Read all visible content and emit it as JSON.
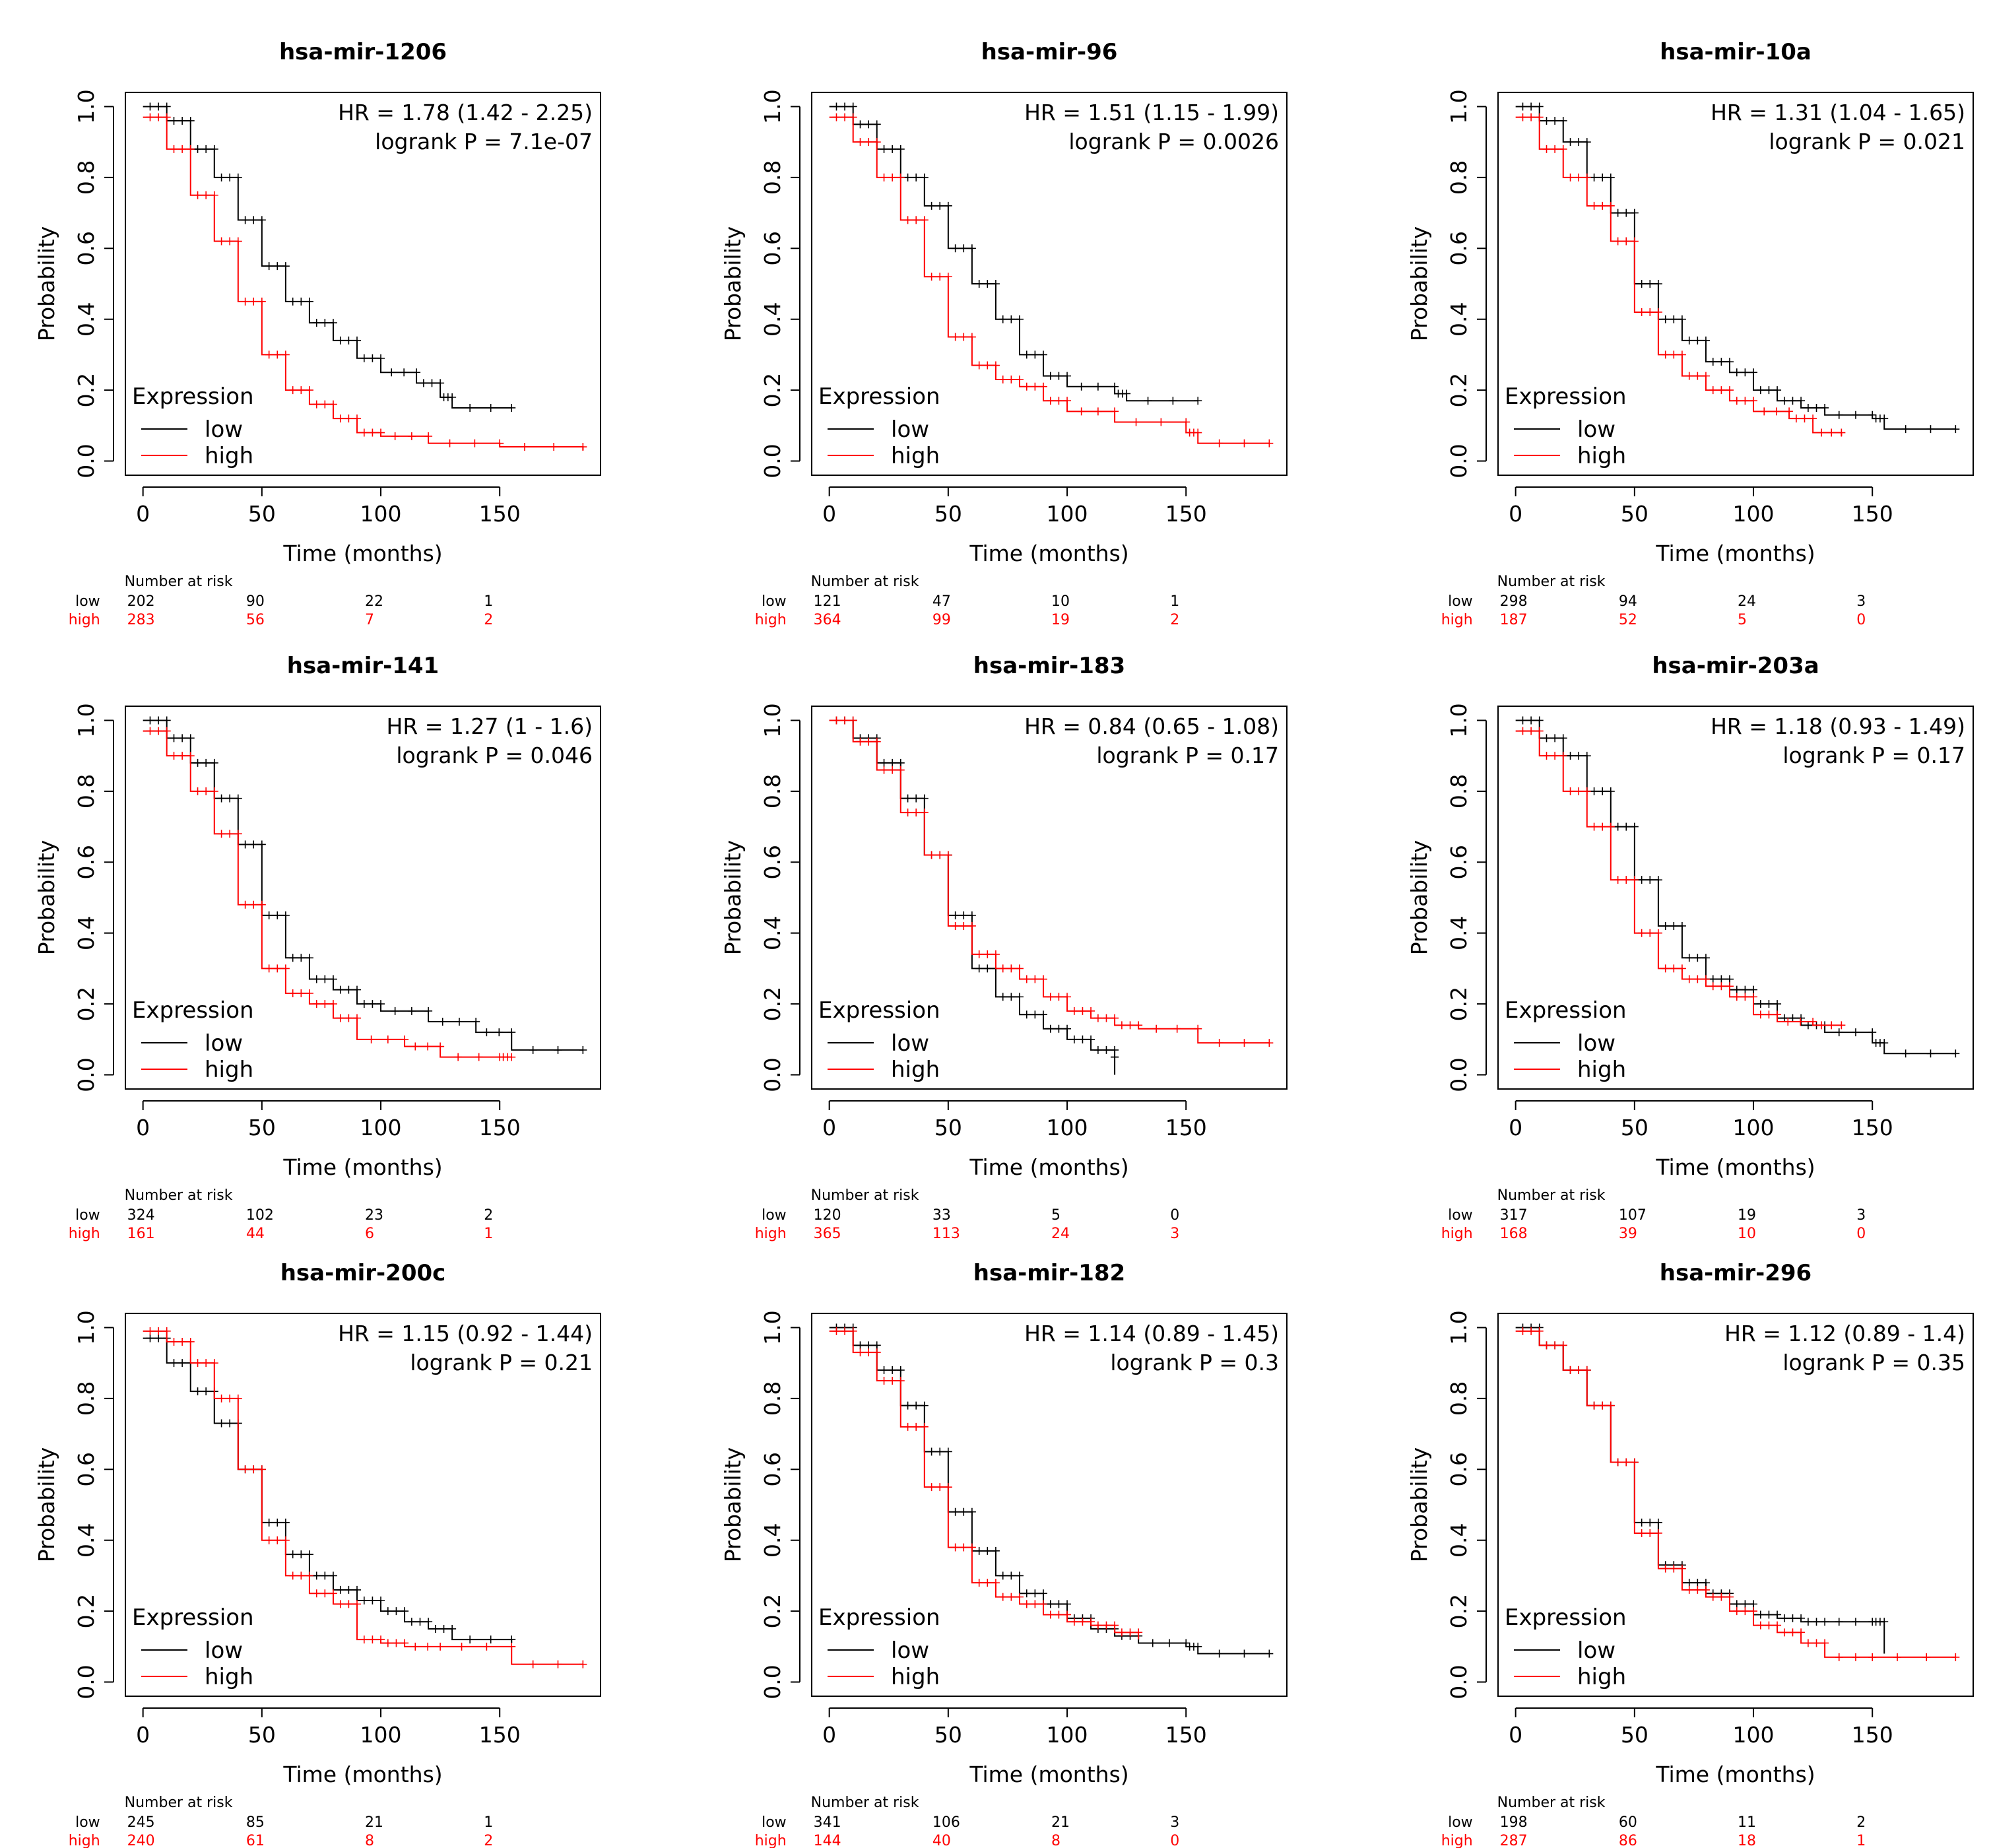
{
  "figure": {
    "legend_title": "Expression",
    "risk_label": "Number at risk",
    "group_low": "low",
    "group_high": "high",
    "colors": {
      "low": "#000000",
      "high": "#ff0000"
    }
  },
  "chart_data": [
    {
      "type": "line",
      "title": "hsa-mir-1206",
      "xlabel": "Time (months)",
      "ylabel": "Probability",
      "xlim": [
        0,
        185
      ],
      "ylim": [
        0,
        1
      ],
      "xticks": [
        "0",
        "50",
        "100",
        "150"
      ],
      "yticks": [
        "0.0",
        "0.2",
        "0.4",
        "0.6",
        "0.8",
        "1.0"
      ],
      "hr_text": "HR = 1.78 (1.42 - 2.25)",
      "p_text": "logrank P = 7.1e-07",
      "series": [
        {
          "name": "low",
          "x": [
            0,
            10,
            20,
            30,
            40,
            50,
            60,
            70,
            80,
            90,
            100,
            115,
            125,
            130,
            155
          ],
          "y": [
            1,
            0.96,
            0.88,
            0.8,
            0.68,
            0.55,
            0.45,
            0.39,
            0.34,
            0.29,
            0.25,
            0.22,
            0.18,
            0.15,
            0.15
          ]
        },
        {
          "name": "high",
          "x": [
            0,
            10,
            20,
            30,
            40,
            50,
            60,
            70,
            80,
            90,
            100,
            120,
            150,
            185
          ],
          "y": [
            0.97,
            0.88,
            0.75,
            0.62,
            0.45,
            0.3,
            0.2,
            0.16,
            0.12,
            0.08,
            0.07,
            0.05,
            0.04,
            0.03
          ]
        }
      ],
      "risk_table": {
        "low": [
          "202",
          "90",
          "22",
          "1"
        ],
        "high": [
          "283",
          "56",
          "7",
          "2"
        ]
      }
    },
    {
      "type": "line",
      "title": "hsa-mir-96",
      "xlabel": "Time (months)",
      "ylabel": "Probability",
      "xlim": [
        0,
        185
      ],
      "ylim": [
        0,
        1
      ],
      "xticks": [
        "0",
        "50",
        "100",
        "150"
      ],
      "yticks": [
        "0.0",
        "0.2",
        "0.4",
        "0.6",
        "0.8",
        "1.0"
      ],
      "hr_text": "HR = 1.51 (1.15 - 1.99)",
      "p_text": "logrank P = 0.0026",
      "series": [
        {
          "name": "low",
          "x": [
            0,
            10,
            20,
            30,
            40,
            50,
            60,
            70,
            80,
            90,
            100,
            120,
            125,
            155
          ],
          "y": [
            1,
            0.95,
            0.88,
            0.8,
            0.72,
            0.6,
            0.5,
            0.4,
            0.3,
            0.24,
            0.21,
            0.19,
            0.17,
            0.17
          ]
        },
        {
          "name": "high",
          "x": [
            0,
            10,
            20,
            30,
            40,
            50,
            60,
            70,
            80,
            90,
            100,
            120,
            150,
            155,
            185
          ],
          "y": [
            0.97,
            0.9,
            0.8,
            0.68,
            0.52,
            0.35,
            0.27,
            0.23,
            0.21,
            0.17,
            0.14,
            0.11,
            0.08,
            0.05,
            0.05
          ]
        }
      ],
      "risk_table": {
        "low": [
          "121",
          "47",
          "10",
          "1"
        ],
        "high": [
          "364",
          "99",
          "19",
          "2"
        ]
      }
    },
    {
      "type": "line",
      "title": "hsa-mir-10a",
      "xlabel": "Time (months)",
      "ylabel": "Probability",
      "xlim": [
        0,
        185
      ],
      "ylim": [
        0,
        1
      ],
      "xticks": [
        "0",
        "50",
        "100",
        "150"
      ],
      "yticks": [
        "0.0",
        "0.2",
        "0.4",
        "0.6",
        "0.8",
        "1.0"
      ],
      "hr_text": "HR = 1.31 (1.04 - 1.65)",
      "p_text": "logrank P = 0.021",
      "series": [
        {
          "name": "low",
          "x": [
            0,
            10,
            20,
            30,
            40,
            50,
            60,
            70,
            80,
            90,
            100,
            110,
            120,
            130,
            150,
            155,
            185
          ],
          "y": [
            1,
            0.96,
            0.9,
            0.8,
            0.7,
            0.5,
            0.4,
            0.34,
            0.28,
            0.25,
            0.2,
            0.17,
            0.15,
            0.13,
            0.12,
            0.09,
            0.09
          ]
        },
        {
          "name": "high",
          "x": [
            0,
            10,
            20,
            30,
            40,
            50,
            60,
            70,
            80,
            90,
            100,
            115,
            125,
            137
          ],
          "y": [
            0.97,
            0.88,
            0.8,
            0.72,
            0.62,
            0.42,
            0.3,
            0.24,
            0.2,
            0.17,
            0.14,
            0.12,
            0.08,
            0.07
          ]
        }
      ],
      "risk_table": {
        "low": [
          "298",
          "94",
          "24",
          "3"
        ],
        "high": [
          "187",
          "52",
          "5",
          "0"
        ]
      }
    },
    {
      "type": "line",
      "title": "hsa-mir-141",
      "xlabel": "Time (months)",
      "ylabel": "Probability",
      "xlim": [
        0,
        185
      ],
      "ylim": [
        0,
        1
      ],
      "xticks": [
        "0",
        "50",
        "100",
        "150"
      ],
      "yticks": [
        "0.0",
        "0.2",
        "0.4",
        "0.6",
        "0.8",
        "1.0"
      ],
      "hr_text": "HR = 1.27 (1 - 1.6)",
      "p_text": "logrank P = 0.046",
      "series": [
        {
          "name": "low",
          "x": [
            0,
            10,
            20,
            30,
            40,
            50,
            60,
            70,
            80,
            90,
            100,
            120,
            140,
            155,
            185
          ],
          "y": [
            1,
            0.95,
            0.88,
            0.78,
            0.65,
            0.45,
            0.33,
            0.27,
            0.24,
            0.2,
            0.18,
            0.15,
            0.12,
            0.07,
            0.07
          ]
        },
        {
          "name": "high",
          "x": [
            0,
            10,
            20,
            30,
            40,
            50,
            60,
            70,
            80,
            90,
            110,
            125,
            150,
            155
          ],
          "y": [
            0.97,
            0.9,
            0.8,
            0.68,
            0.48,
            0.3,
            0.23,
            0.2,
            0.16,
            0.1,
            0.08,
            0.05,
            0.05,
            0.05
          ]
        }
      ],
      "risk_table": {
        "low": [
          "324",
          "102",
          "23",
          "2"
        ],
        "high": [
          "161",
          "44",
          "6",
          "1"
        ]
      }
    },
    {
      "type": "line",
      "title": "hsa-mir-183",
      "xlabel": "Time (months)",
      "ylabel": "Probability",
      "xlim": [
        0,
        185
      ],
      "ylim": [
        0,
        1
      ],
      "xticks": [
        "0",
        "50",
        "100",
        "150"
      ],
      "yticks": [
        "0.0",
        "0.2",
        "0.4",
        "0.6",
        "0.8",
        "1.0"
      ],
      "hr_text": "HR = 0.84 (0.65 - 1.08)",
      "p_text": "logrank P = 0.17",
      "series": [
        {
          "name": "low",
          "x": [
            0,
            10,
            20,
            30,
            40,
            50,
            60,
            70,
            80,
            90,
            100,
            110,
            120,
            120
          ],
          "y": [
            1,
            0.95,
            0.88,
            0.78,
            0.62,
            0.45,
            0.3,
            0.22,
            0.17,
            0.13,
            0.1,
            0.07,
            0.05,
            0.0
          ]
        },
        {
          "name": "high",
          "x": [
            0,
            10,
            20,
            30,
            40,
            50,
            60,
            70,
            80,
            90,
            100,
            110,
            120,
            130,
            155,
            185
          ],
          "y": [
            1,
            0.94,
            0.86,
            0.74,
            0.62,
            0.42,
            0.34,
            0.3,
            0.27,
            0.22,
            0.18,
            0.16,
            0.14,
            0.13,
            0.09,
            0.09
          ]
        }
      ],
      "risk_table": {
        "low": [
          "120",
          "33",
          "5",
          "0"
        ],
        "high": [
          "365",
          "113",
          "24",
          "3"
        ]
      }
    },
    {
      "type": "line",
      "title": "hsa-mir-203a",
      "xlabel": "Time (months)",
      "ylabel": "Probability",
      "xlim": [
        0,
        185
      ],
      "ylim": [
        0,
        1
      ],
      "xticks": [
        "0",
        "50",
        "100",
        "150"
      ],
      "yticks": [
        "0.0",
        "0.2",
        "0.4",
        "0.6",
        "0.8",
        "1.0"
      ],
      "hr_text": "HR = 1.18 (0.93 - 1.49)",
      "p_text": "logrank P = 0.17",
      "series": [
        {
          "name": "low",
          "x": [
            0,
            10,
            20,
            30,
            40,
            50,
            60,
            70,
            80,
            90,
            100,
            110,
            120,
            130,
            150,
            155,
            185
          ],
          "y": [
            1,
            0.95,
            0.9,
            0.8,
            0.7,
            0.55,
            0.42,
            0.33,
            0.27,
            0.24,
            0.2,
            0.16,
            0.14,
            0.12,
            0.09,
            0.06,
            0.06
          ]
        },
        {
          "name": "high",
          "x": [
            0,
            10,
            20,
            30,
            40,
            50,
            60,
            70,
            80,
            90,
            100,
            110,
            125,
            137
          ],
          "y": [
            0.97,
            0.9,
            0.8,
            0.7,
            0.55,
            0.4,
            0.3,
            0.27,
            0.25,
            0.22,
            0.17,
            0.15,
            0.14,
            0.14
          ]
        }
      ],
      "risk_table": {
        "low": [
          "317",
          "107",
          "19",
          "3"
        ],
        "high": [
          "168",
          "39",
          "10",
          "0"
        ]
      }
    },
    {
      "type": "line",
      "title": "hsa-mir-200c",
      "xlabel": "Time (months)",
      "ylabel": "Probability",
      "xlim": [
        0,
        185
      ],
      "ylim": [
        0,
        1
      ],
      "xticks": [
        "0",
        "50",
        "100",
        "150"
      ],
      "yticks": [
        "0.0",
        "0.2",
        "0.4",
        "0.6",
        "0.8",
        "1.0"
      ],
      "hr_text": "HR = 1.15 (0.92 - 1.44)",
      "p_text": "logrank P = 0.21",
      "series": [
        {
          "name": "low",
          "x": [
            0,
            10,
            20,
            30,
            40,
            50,
            60,
            70,
            80,
            90,
            100,
            110,
            120,
            130,
            155
          ],
          "y": [
            0.97,
            0.9,
            0.82,
            0.73,
            0.6,
            0.45,
            0.36,
            0.3,
            0.26,
            0.23,
            0.2,
            0.17,
            0.15,
            0.12,
            0.11
          ]
        },
        {
          "name": "high",
          "x": [
            0,
            10,
            20,
            30,
            40,
            50,
            60,
            70,
            80,
            90,
            100,
            110,
            125,
            155,
            185
          ],
          "y": [
            0.99,
            0.96,
            0.9,
            0.8,
            0.6,
            0.4,
            0.3,
            0.25,
            0.22,
            0.12,
            0.11,
            0.1,
            0.1,
            0.05,
            0.05
          ]
        }
      ],
      "risk_table": {
        "low": [
          "245",
          "85",
          "21",
          "1"
        ],
        "high": [
          "240",
          "61",
          "8",
          "2"
        ]
      }
    },
    {
      "type": "line",
      "title": "hsa-mir-182",
      "xlabel": "Time (months)",
      "ylabel": "Probability",
      "xlim": [
        0,
        185
      ],
      "ylim": [
        0,
        1
      ],
      "xticks": [
        "0",
        "50",
        "100",
        "150"
      ],
      "yticks": [
        "0.0",
        "0.2",
        "0.4",
        "0.6",
        "0.8",
        "1.0"
      ],
      "hr_text": "HR = 1.14 (0.89 - 1.45)",
      "p_text": "logrank P = 0.3",
      "series": [
        {
          "name": "low",
          "x": [
            0,
            10,
            20,
            30,
            40,
            50,
            60,
            70,
            80,
            90,
            100,
            110,
            120,
            130,
            150,
            155,
            185
          ],
          "y": [
            1,
            0.95,
            0.88,
            0.78,
            0.65,
            0.48,
            0.37,
            0.3,
            0.25,
            0.22,
            0.18,
            0.15,
            0.13,
            0.11,
            0.1,
            0.08,
            0.08
          ]
        },
        {
          "name": "high",
          "x": [
            0,
            10,
            20,
            30,
            40,
            50,
            60,
            70,
            80,
            90,
            100,
            110,
            120,
            130
          ],
          "y": [
            0.99,
            0.93,
            0.85,
            0.72,
            0.55,
            0.38,
            0.28,
            0.24,
            0.22,
            0.19,
            0.17,
            0.16,
            0.14,
            0.12
          ]
        }
      ],
      "risk_table": {
        "low": [
          "341",
          "106",
          "21",
          "3"
        ],
        "high": [
          "144",
          "40",
          "8",
          "0"
        ]
      }
    },
    {
      "type": "line",
      "title": "hsa-mir-296",
      "xlabel": "Time (months)",
      "ylabel": "Probability",
      "xlim": [
        0,
        185
      ],
      "ylim": [
        0,
        1
      ],
      "xticks": [
        "0",
        "50",
        "100",
        "150"
      ],
      "yticks": [
        "0.0",
        "0.2",
        "0.4",
        "0.6",
        "0.8",
        "1.0"
      ],
      "hr_text": "HR = 1.12 (0.89 - 1.4)",
      "p_text": "logrank P = 0.35",
      "series": [
        {
          "name": "low",
          "x": [
            0,
            10,
            20,
            30,
            40,
            50,
            60,
            70,
            80,
            90,
            100,
            110,
            120,
            130,
            150,
            155
          ],
          "y": [
            1,
            0.95,
            0.88,
            0.78,
            0.62,
            0.45,
            0.33,
            0.28,
            0.25,
            0.22,
            0.19,
            0.18,
            0.17,
            0.17,
            0.17,
            0.08
          ]
        },
        {
          "name": "high",
          "x": [
            0,
            10,
            20,
            30,
            40,
            50,
            60,
            70,
            80,
            90,
            100,
            110,
            120,
            130,
            150,
            185
          ],
          "y": [
            0.99,
            0.95,
            0.88,
            0.78,
            0.62,
            0.42,
            0.32,
            0.26,
            0.24,
            0.2,
            0.16,
            0.14,
            0.11,
            0.07,
            0.07,
            0.07
          ]
        }
      ],
      "risk_table": {
        "low": [
          "198",
          "60",
          "11",
          "2"
        ],
        "high": [
          "287",
          "86",
          "18",
          "1"
        ]
      }
    }
  ]
}
